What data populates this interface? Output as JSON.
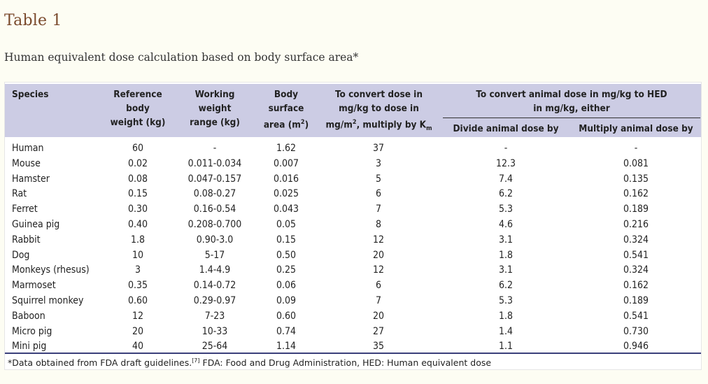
{
  "title": "Table 1",
  "caption": "Human equivalent dose calculation based on body surface area*",
  "headers": {
    "species": "Species",
    "ref_weight": [
      "Reference",
      "body",
      "weight (kg)"
    ],
    "working_range": [
      "Working",
      "weight",
      "range (kg)"
    ],
    "bsa": [
      "Body",
      "surface",
      "area (m"
    ],
    "bsa_sup": "2",
    "bsa_end": ")",
    "km_line1": "To convert dose in",
    "km_line2": "mg/kg to dose in",
    "km_line3a": "mg/m",
    "km_line3_sup": "2",
    "km_line3b": ", multiply by K",
    "km_sub": "m",
    "hed_group": [
      "To convert animal dose in mg/kg to HED",
      "in mg/kg, either"
    ],
    "divide": "Divide animal dose by",
    "multiply": "Multiply animal dose by"
  },
  "rows": [
    {
      "species": "Human",
      "ref": "60",
      "range": "-",
      "bsa": "1.62",
      "km": "37",
      "divide": "-",
      "multiply": "-"
    },
    {
      "species": "Mouse",
      "ref": "0.02",
      "range": "0.011-0.034",
      "bsa": "0.007",
      "km": "3",
      "divide": "12.3",
      "multiply": "0.081"
    },
    {
      "species": "Hamster",
      "ref": "0.08",
      "range": "0.047-0.157",
      "bsa": "0.016",
      "km": "5",
      "divide": "7.4",
      "multiply": "0.135"
    },
    {
      "species": "Rat",
      "ref": "0.15",
      "range": "0.08-0.27",
      "bsa": "0.025",
      "km": "6",
      "divide": "6.2",
      "multiply": "0.162"
    },
    {
      "species": "Ferret",
      "ref": "0.30",
      "range": "0.16-0.54",
      "bsa": "0.043",
      "km": "7",
      "divide": "5.3",
      "multiply": "0.189"
    },
    {
      "species": "Guinea pig",
      "ref": "0.40",
      "range": "0.208-0.700",
      "bsa": "0.05",
      "km": "8",
      "divide": "4.6",
      "multiply": "0.216"
    },
    {
      "species": "Rabbit",
      "ref": "1.8",
      "range": "0.90-3.0",
      "bsa": "0.15",
      "km": "12",
      "divide": "3.1",
      "multiply": "0.324"
    },
    {
      "species": "Dog",
      "ref": "10",
      "range": "5-17",
      "bsa": "0.50",
      "km": "20",
      "divide": "1.8",
      "multiply": "0.541"
    },
    {
      "species": "Monkeys (rhesus)",
      "ref": "3",
      "range": "1.4-4.9",
      "bsa": "0.25",
      "km": "12",
      "divide": "3.1",
      "multiply": "0.324"
    },
    {
      "species": "Marmoset",
      "ref": "0.35",
      "range": "0.14-0.72",
      "bsa": "0.06",
      "km": "6",
      "divide": "6.2",
      "multiply": "0.162"
    },
    {
      "species": "Squirrel monkey",
      "ref": "0.60",
      "range": "0.29-0.97",
      "bsa": "0.09",
      "km": "7",
      "divide": "5.3",
      "multiply": "0.189"
    },
    {
      "species": "Baboon",
      "ref": "12",
      "range": "7-23",
      "bsa": "0.60",
      "km": "20",
      "divide": "1.8",
      "multiply": "0.541"
    },
    {
      "species": "Micro pig",
      "ref": "20",
      "range": "10-33",
      "bsa": "0.74",
      "km": "27",
      "divide": "1.4",
      "multiply": "0.730"
    },
    {
      "species": "Mini pig",
      "ref": "40",
      "range": "25-64",
      "bsa": "1.14",
      "km": "35",
      "divide": "1.1",
      "multiply": "0.946"
    }
  ],
  "footnote": {
    "before": "*Data obtained from FDA draft guidelines.",
    "ref": "[7]",
    "after": " FDA: Food and Drug Administration, HED: Human equivalent dose"
  }
}
